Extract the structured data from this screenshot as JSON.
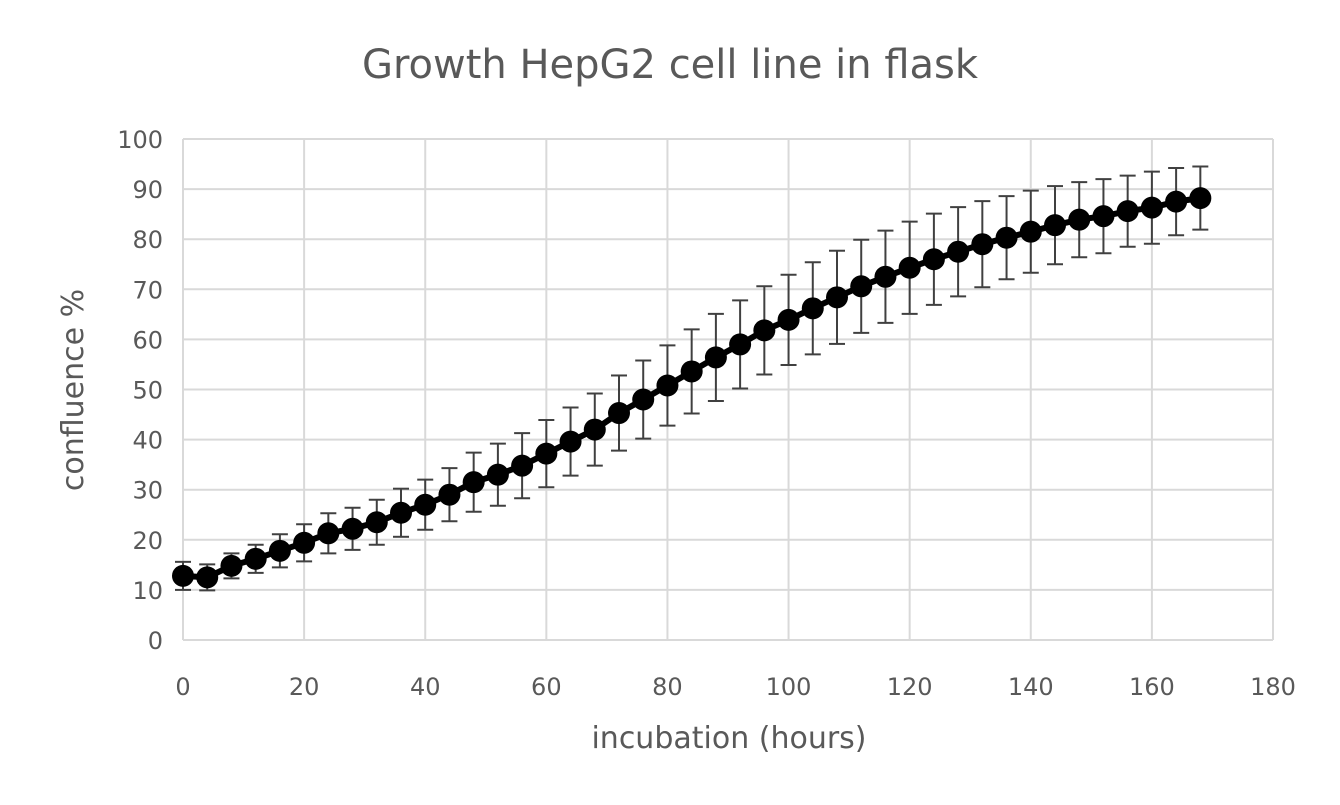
{
  "chart_data": {
    "type": "scatter",
    "title": "Growth HepG2 cell line in flask",
    "xlabel": "incubation (hours)",
    "ylabel": "confluence %",
    "xlim": [
      0,
      180
    ],
    "ylim": [
      0,
      100
    ],
    "xticks": [
      "0",
      "20",
      "40",
      "60",
      "80",
      "100",
      "120",
      "140",
      "160",
      "180"
    ],
    "yticks": [
      "0",
      "10",
      "20",
      "30",
      "40",
      "50",
      "60",
      "70",
      "80",
      "90",
      "100"
    ],
    "grid": true,
    "legend": "none",
    "marker_color": "#000000",
    "errorbar_color": "#404040",
    "series": [
      {
        "x": [
          0,
          4,
          8,
          12,
          16,
          20,
          24,
          28,
          32,
          36,
          40,
          44,
          48,
          52,
          56,
          60,
          64,
          68,
          72,
          76,
          80,
          84,
          88,
          92,
          96,
          100,
          104,
          108,
          112,
          116,
          120,
          124,
          128,
          132,
          136,
          140,
          144,
          148,
          152,
          156,
          160,
          164,
          168
        ],
        "y": [
          12.8,
          12.5,
          14.8,
          16.2,
          17.8,
          19.4,
          21.3,
          22.2,
          23.5,
          25.4,
          27.0,
          29.0,
          31.5,
          33.0,
          34.8,
          37.2,
          39.6,
          42.0,
          45.3,
          48.0,
          50.8,
          53.6,
          56.4,
          59.0,
          61.8,
          63.9,
          66.2,
          68.4,
          70.6,
          72.5,
          74.3,
          76.0,
          77.5,
          79.0,
          80.3,
          81.5,
          82.8,
          83.9,
          84.6,
          85.6,
          86.3,
          87.5,
          88.2
        ],
        "error": [
          2.8,
          2.6,
          2.5,
          2.8,
          3.3,
          3.7,
          4.0,
          4.2,
          4.5,
          4.8,
          5.0,
          5.3,
          5.9,
          6.2,
          6.5,
          6.7,
          6.8,
          7.2,
          7.5,
          7.8,
          8.0,
          8.4,
          8.7,
          8.8,
          8.8,
          9.0,
          9.2,
          9.3,
          9.3,
          9.2,
          9.2,
          9.1,
          8.9,
          8.6,
          8.3,
          8.2,
          7.8,
          7.5,
          7.4,
          7.1,
          7.2,
          6.7,
          6.3
        ]
      }
    ]
  }
}
